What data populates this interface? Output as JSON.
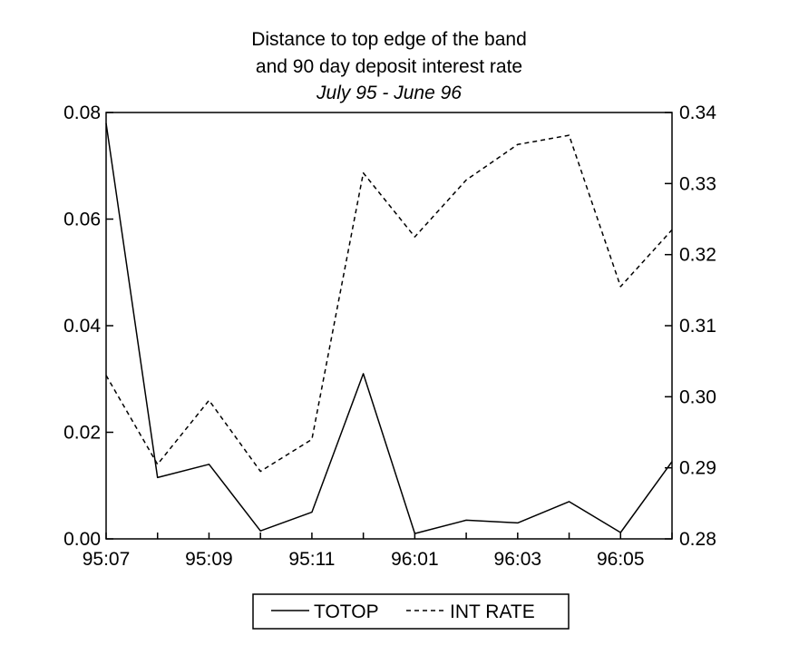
{
  "chart_data": {
    "type": "line",
    "title": "Distance to top edge of the band",
    "title_line2": "and 90 day deposit interest rate",
    "subtitle": "July 95 - June 96",
    "x": [
      "95:07",
      "95:08",
      "95:09",
      "95:10",
      "95:11",
      "95:12",
      "96:01",
      "96:02",
      "96:03",
      "96:04",
      "96:05",
      "96:06"
    ],
    "x_tick_labels": [
      "95:07",
      "95:09",
      "95:11",
      "96:01",
      "96:03",
      "96:05"
    ],
    "left_axis": {
      "ylim": [
        0.0,
        0.08
      ],
      "ticks": [
        "0.00",
        "0.02",
        "0.04",
        "0.06",
        "0.08"
      ]
    },
    "right_axis": {
      "ylim": [
        0.28,
        0.34
      ],
      "ticks": [
        "0.28",
        "0.29",
        "0.30",
        "0.31",
        "0.32",
        "0.33",
        "0.34"
      ]
    },
    "series": [
      {
        "name": "TOTOP",
        "axis": "left",
        "style": "solid",
        "values": [
          0.078,
          0.0115,
          0.014,
          0.0015,
          0.005,
          0.031,
          0.001,
          0.0035,
          0.003,
          0.007,
          0.0012,
          0.0145
        ]
      },
      {
        "name": "INT RATE",
        "axis": "right",
        "style": "dashed",
        "values": [
          0.303,
          0.2905,
          0.2995,
          0.2895,
          0.294,
          0.3315,
          0.3225,
          0.3305,
          0.3355,
          0.3368,
          0.3155,
          0.3235
        ]
      }
    ],
    "grid": false,
    "legend_position": "bottom-center",
    "colors": {
      "line": "#000000",
      "frame": "#000000",
      "background": "#ffffff"
    }
  }
}
